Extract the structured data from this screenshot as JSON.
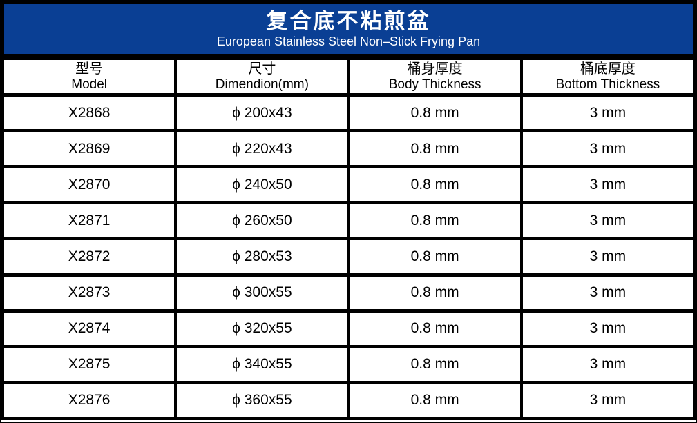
{
  "banner": {
    "title_cn": "复合底不粘煎盆",
    "title_en": "European Stainless Steel Non–Stick Frying Pan",
    "bg_color": "#0A3F94",
    "text_color": "#FFFFFF"
  },
  "table": {
    "columns": [
      {
        "cn": "型号",
        "en": "Model"
      },
      {
        "cn": "尺寸",
        "en": "Dimendion(mm)"
      },
      {
        "cn": "桶身厚度",
        "en": "Body Thickness"
      },
      {
        "cn": "桶底厚度",
        "en": "Bottom Thickness"
      }
    ],
    "rows": [
      {
        "model": "X2868",
        "dimension": "ϕ 200x43",
        "body_thickness": "0.8 mm",
        "bottom_thickness": "3 mm"
      },
      {
        "model": "X2869",
        "dimension": "ϕ 220x43",
        "body_thickness": "0.8 mm",
        "bottom_thickness": "3 mm"
      },
      {
        "model": "X2870",
        "dimension": "ϕ 240x50",
        "body_thickness": "0.8 mm",
        "bottom_thickness": "3 mm"
      },
      {
        "model": "X2871",
        "dimension": "ϕ 260x50",
        "body_thickness": "0.8 mm",
        "bottom_thickness": "3 mm"
      },
      {
        "model": "X2872",
        "dimension": "ϕ 280x53",
        "body_thickness": "0.8 mm",
        "bottom_thickness": "3 mm"
      },
      {
        "model": "X2873",
        "dimension": "ϕ 300x55",
        "body_thickness": "0.8 mm",
        "bottom_thickness": "3 mm"
      },
      {
        "model": "X2874",
        "dimension": "ϕ 320x55",
        "body_thickness": "0.8 mm",
        "bottom_thickness": "3 mm"
      },
      {
        "model": "X2875",
        "dimension": "ϕ 340x55",
        "body_thickness": "0.8 mm",
        "bottom_thickness": "3 mm"
      },
      {
        "model": "X2876",
        "dimension": "ϕ 360x55",
        "body_thickness": "0.8 mm",
        "bottom_thickness": "3 mm"
      }
    ]
  }
}
